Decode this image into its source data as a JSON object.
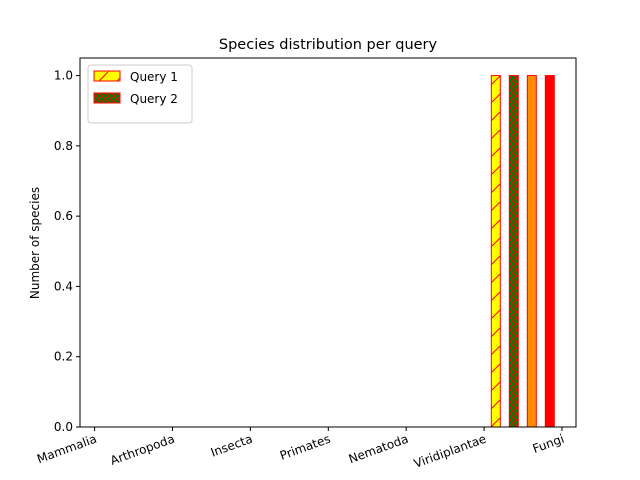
{
  "chart_data": {
    "type": "bar",
    "title": "Species distribution per query",
    "xlabel": "",
    "ylabel": "Number of species",
    "ylim": [
      0,
      1.05
    ],
    "yticks": [
      0.0,
      0.2,
      0.4,
      0.6,
      0.8,
      1.0
    ],
    "ytick_labels": [
      "0.0",
      "0.2",
      "0.4",
      "0.6",
      "0.8",
      "1.0"
    ],
    "categories": [
      "Mammalia",
      "Arthropoda",
      "Insecta",
      "Primates",
      "Nematoda",
      "Viridiplantae",
      "Fungi"
    ],
    "series": [
      {
        "name": "Query 1",
        "values": [
          0,
          0,
          0,
          0,
          0,
          1,
          0
        ],
        "color": "#ffff00",
        "edge": "#ff0000",
        "hatch": "diagonal"
      },
      {
        "name": "Query 2",
        "values": [
          0,
          0,
          0,
          0,
          0,
          1,
          0
        ],
        "color": "#008000",
        "edge": "#ff0000",
        "hatch": "cross"
      },
      {
        "values": [
          0,
          0,
          0,
          0,
          0,
          1,
          0
        ],
        "color": "#ff8c00",
        "edge": "#ff0000",
        "hatch": "none"
      },
      {
        "values": [
          0,
          0,
          0,
          0,
          0,
          1,
          0
        ],
        "color": "#ff0000",
        "edge": "#ff0000",
        "hatch": "none"
      }
    ],
    "grid": false,
    "legend_position": "top-left"
  }
}
